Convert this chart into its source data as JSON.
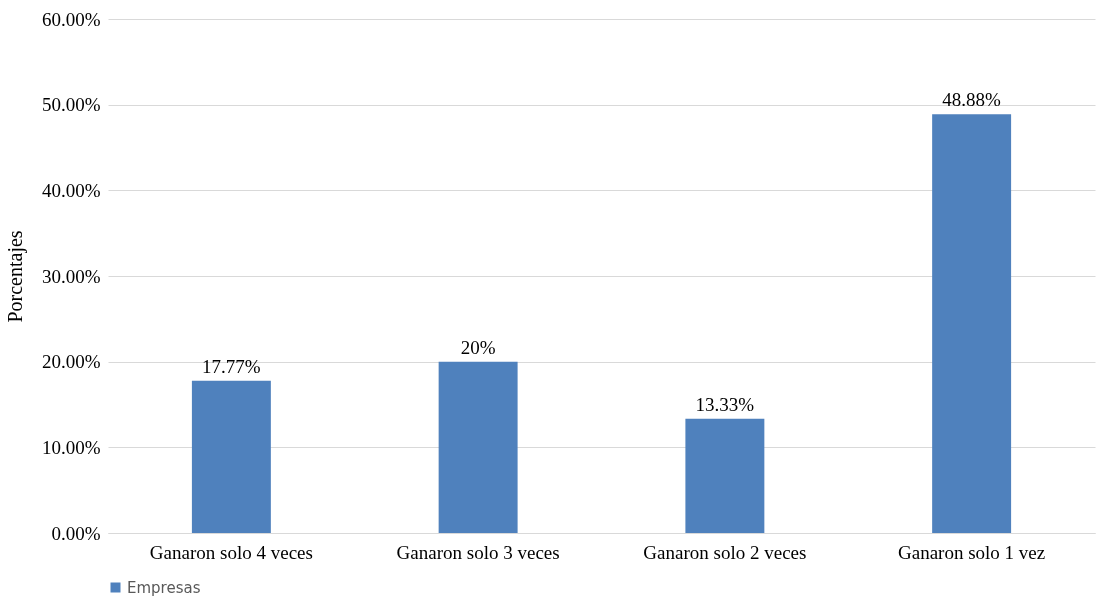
{
  "chart_data": {
    "type": "bar",
    "ylabel": "Porcentajes",
    "categories": [
      "Ganaron solo 4 veces",
      "Ganaron solo 3 veces",
      "Ganaron solo 2 veces",
      "Ganaron solo 1 vez"
    ],
    "series": [
      {
        "name": "Empresas",
        "color": "#4f81bd",
        "values": [
          17.77,
          20,
          13.33,
          48.88
        ],
        "value_labels": [
          "17.77%",
          "20%",
          "13.33%",
          "48.88%"
        ]
      }
    ],
    "ylim": [
      0,
      60
    ],
    "yticks": [
      {
        "value": 0,
        "label": "0.00%"
      },
      {
        "value": 10,
        "label": "10.00%"
      },
      {
        "value": 20,
        "label": "20.00%"
      },
      {
        "value": 30,
        "label": "30.00%"
      },
      {
        "value": 40,
        "label": "40.00%"
      },
      {
        "value": 50,
        "label": "50.00%"
      },
      {
        "value": 60,
        "label": "60.00%"
      }
    ],
    "grid": "y",
    "legend": "bottom"
  }
}
